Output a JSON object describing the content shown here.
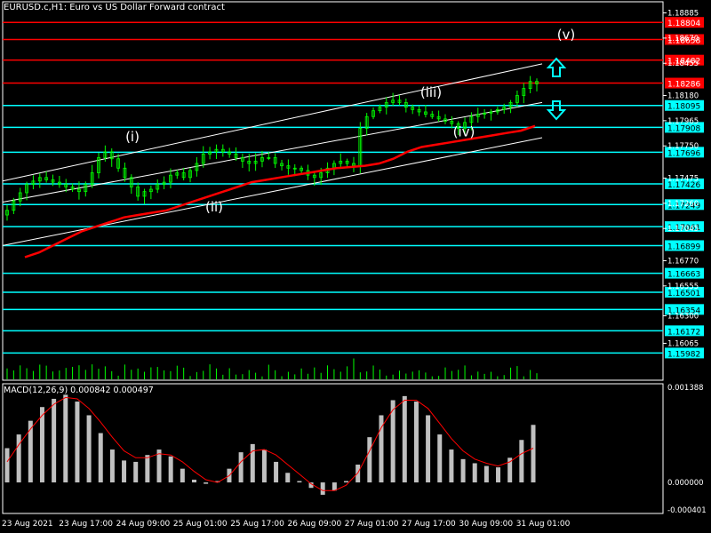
{
  "window": {
    "title": "EURUSD.c,H1:  Euro vs US Dollar Forward contract",
    "macd_title": "MACD(12,26,9) 0.000842 0.000497"
  },
  "colors": {
    "background": "#000000",
    "grid": "#ffffff",
    "candles": "#00ff00",
    "moving_average": "#ff0000",
    "macd_histogram": "#c0c0c0",
    "macd_signal": "#ff0000",
    "support_line": "#00ffff",
    "resistance_line": "#ff0000",
    "resistance_label_bg": "#ff0000",
    "support_label_bg": "#00ffff",
    "channel": "#ffffff",
    "arrows": "#00ffff"
  },
  "chart_data": [
    {
      "type": "candlestick",
      "symbol": "EURUSD.c",
      "timeframe": "H1",
      "ylim": [
        1.1575,
        1.1898
      ],
      "price_axis_ticks": [
        "1.18885",
        "1.18670",
        "1.18455",
        "1.18180",
        "1.17965",
        "1.17750",
        "1.17475",
        "1.17260",
        "1.17045",
        "1.16770",
        "1.16555",
        "1.16300",
        "1.16065"
      ],
      "time_axis_ticks": [
        "23 Aug 2021",
        "23 Aug 17:00",
        "24 Aug 09:00",
        "25 Aug 01:00",
        "25 Aug 17:00",
        "26 Aug 09:00",
        "27 Aug 01:00",
        "27 Aug 17:00",
        "30 Aug 09:00",
        "31 Aug 01:00"
      ],
      "close_series": [
        1.172,
        1.1728,
        1.1735,
        1.1742,
        1.1745,
        1.1748,
        1.1746,
        1.1744,
        1.1742,
        1.174,
        1.1738,
        1.1736,
        1.1742,
        1.1752,
        1.1765,
        1.177,
        1.1764,
        1.1756,
        1.1748,
        1.174,
        1.1732,
        1.1736,
        1.1738,
        1.1742,
        1.1744,
        1.175,
        1.1752,
        1.1748,
        1.1754,
        1.176,
        1.1768,
        1.177,
        1.1772,
        1.177,
        1.1768,
        1.1765,
        1.1762,
        1.176,
        1.1762,
        1.1765,
        1.1765,
        1.176,
        1.1758,
        1.1756,
        1.1756,
        1.1754,
        1.175,
        1.1748,
        1.1752,
        1.1756,
        1.176,
        1.1762,
        1.176,
        1.1758,
        1.179,
        1.18,
        1.1805,
        1.1808,
        1.1812,
        1.1814,
        1.1812,
        1.1808,
        1.1806,
        1.1804,
        1.1802,
        1.18,
        1.1798,
        1.1796,
        1.1794,
        1.179,
        1.1795,
        1.18,
        1.1802,
        1.1803,
        1.1804,
        1.1806,
        1.1808,
        1.1812,
        1.1818,
        1.1824,
        1.183,
        1.1828
      ],
      "moving_average": [
        1.168,
        1.1684,
        1.169,
        1.1696,
        1.1702,
        1.1706,
        1.171,
        1.1714,
        1.1716,
        1.1718,
        1.172,
        1.1724,
        1.1728,
        1.1732,
        1.1736,
        1.174,
        1.1744,
        1.1746,
        1.1748,
        1.175,
        1.1752,
        1.1754,
        1.1756,
        1.1757,
        1.1758,
        1.176,
        1.1764,
        1.177,
        1.1774,
        1.1776,
        1.1778,
        1.178,
        1.1782,
        1.1784,
        1.1786,
        1.1788,
        1.1792
      ],
      "levels": {
        "resistance": [
          "1.18804",
          "1.18658",
          "1.18482",
          "1.18286"
        ],
        "support": [
          "1.18095",
          "1.17908",
          "1.17696",
          "1.17426",
          "1.17249",
          "1.17061",
          "1.16899",
          "1.16663",
          "1.16501",
          "1.16354",
          "1.16172",
          "1.15982"
        ]
      },
      "wave_labels": [
        "(i)",
        "(ii)",
        "(iii)",
        "(iv)",
        "(v)"
      ]
    },
    {
      "type": "bar",
      "name": "MACD(12,26,9)",
      "values_label": "0.000842 0.000497",
      "ylim": [
        -0.000401,
        0.001388
      ],
      "axis_ticks": [
        "0.001388",
        "0.000000",
        "-0.000401"
      ],
      "histogram": [
        0.0005,
        0.0007,
        0.0009,
        0.0011,
        0.00122,
        0.00128,
        0.00118,
        0.00098,
        0.00072,
        0.00048,
        0.00032,
        0.0003,
        0.0004,
        0.00048,
        0.00038,
        0.0002,
        4e-05,
        -2e-05,
        2e-05,
        0.0002,
        0.00044,
        0.00056,
        0.00048,
        0.0003,
        0.00014,
        2e-05,
        -8e-05,
        -0.00018,
        -0.00012,
        2e-05,
        0.00026,
        0.00066,
        0.00098,
        0.0012,
        0.00126,
        0.00118,
        0.00098,
        0.0007,
        0.00048,
        0.00034,
        0.00028,
        0.00024,
        0.00022,
        0.00036,
        0.00062,
        0.00084
      ],
      "signal": [
        0.0003,
        0.00055,
        0.00078,
        0.00098,
        0.00114,
        0.00124,
        0.00122,
        0.00108,
        0.00088,
        0.00066,
        0.00046,
        0.00036,
        0.00036,
        0.00042,
        0.0004,
        0.0003,
        0.00016,
        4e-05,
        0.0,
        0.0001,
        0.0003,
        0.00046,
        0.00048,
        0.0004,
        0.00026,
        0.00012,
        -2e-05,
        -0.00012,
        -0.00012,
        -4e-05,
        0.00014,
        0.00046,
        0.0008,
        0.00106,
        0.0012,
        0.0012,
        0.00108,
        0.00086,
        0.00064,
        0.00046,
        0.00034,
        0.00028,
        0.00024,
        0.0003,
        0.00042,
        0.0005
      ]
    }
  ]
}
